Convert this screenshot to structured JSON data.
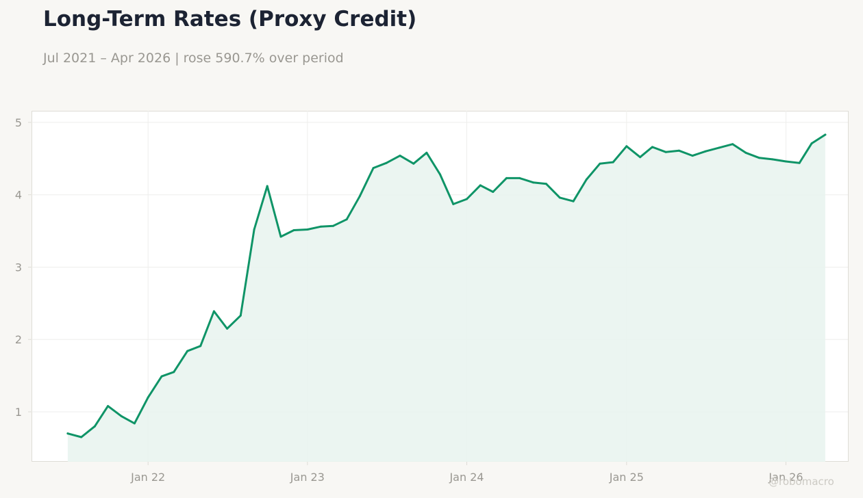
{
  "title": "Long-Term Rates (Proxy Credit)",
  "subtitle": "Jul 2021 – Apr 2026 | rose 590.7% over period",
  "watermark": "@robomacro",
  "colors": {
    "background": "#f8f7f4",
    "plot_background": "#ffffff",
    "line": "#0f9467",
    "fill": "#e9f4ef",
    "grid": "#eeeeec",
    "text_muted": "#999791"
  },
  "chart_data": {
    "type": "area",
    "title": "Long-Term Rates (Proxy Credit)",
    "subtitle": "Jul 2021 – Apr 2026 | rose 590.7% over period",
    "xlabel": "",
    "ylabel": "",
    "grid": true,
    "legend": "none",
    "ylim": [
      0.31,
      5.16
    ],
    "xlim": [
      "2021-04-09",
      "2026-05-23"
    ],
    "x_ticks": [
      {
        "date": "2022-01-01",
        "label": "Jan 22"
      },
      {
        "date": "2023-01-01",
        "label": "Jan 23"
      },
      {
        "date": "2024-01-01",
        "label": "Jan 24"
      },
      {
        "date": "2025-01-01",
        "label": "Jan 25"
      },
      {
        "date": "2026-01-01",
        "label": "Jan 26"
      }
    ],
    "y_ticks": [
      1,
      2,
      3,
      4,
      5
    ],
    "series": [
      {
        "x": [
          "2021-07-01",
          "2021-08-01",
          "2021-09-01",
          "2021-10-01",
          "2021-11-01",
          "2021-12-01",
          "2022-01-01",
          "2022-02-01",
          "2022-03-01",
          "2022-04-01",
          "2022-05-01",
          "2022-06-01",
          "2022-07-01",
          "2022-08-01",
          "2022-09-01",
          "2022-10-01",
          "2022-11-01",
          "2022-12-01",
          "2023-01-01",
          "2023-02-01",
          "2023-03-01",
          "2023-04-01",
          "2023-05-01",
          "2023-06-01",
          "2023-07-01",
          "2023-08-01",
          "2023-09-01",
          "2023-10-01",
          "2023-11-01",
          "2023-12-01",
          "2024-01-01",
          "2024-02-01",
          "2024-03-01",
          "2024-04-01",
          "2024-05-01",
          "2024-06-01",
          "2024-07-01",
          "2024-08-01",
          "2024-09-01",
          "2024-10-01",
          "2024-11-01",
          "2024-12-01",
          "2025-01-01",
          "2025-02-01",
          "2025-03-01",
          "2025-04-01",
          "2025-05-01",
          "2025-06-01",
          "2025-07-01",
          "2025-08-01",
          "2025-09-01",
          "2025-10-01",
          "2025-11-01",
          "2025-12-01",
          "2026-01-01",
          "2026-02-01",
          "2026-03-01",
          "2026-04-01"
        ],
        "values": [
          0.7,
          0.65,
          0.8,
          1.08,
          0.94,
          0.84,
          1.2,
          1.49,
          1.55,
          1.84,
          1.91,
          2.39,
          2.15,
          2.33,
          3.52,
          4.12,
          3.42,
          3.51,
          3.52,
          3.56,
          3.57,
          3.66,
          3.98,
          4.37,
          4.44,
          4.54,
          4.43,
          4.58,
          4.28,
          3.87,
          3.94,
          4.13,
          4.04,
          4.23,
          4.23,
          4.17,
          4.15,
          3.96,
          3.91,
          4.21,
          4.43,
          4.45,
          4.67,
          4.52,
          4.66,
          4.59,
          4.61,
          4.54,
          4.6,
          4.65,
          4.7,
          4.58,
          4.51,
          4.49,
          4.46,
          4.44,
          4.71,
          4.83
        ]
      }
    ]
  }
}
